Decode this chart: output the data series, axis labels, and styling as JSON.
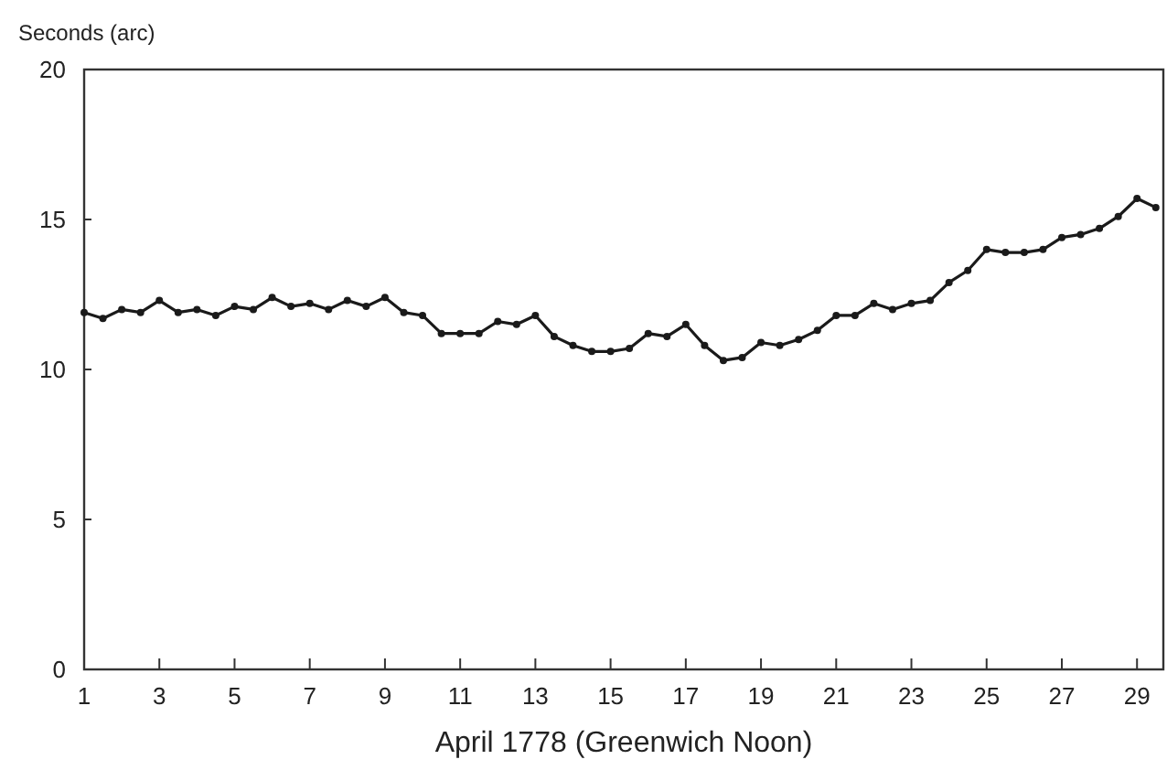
{
  "chart_data": {
    "type": "line",
    "xlabel": "April 1778 (Greenwich Noon)",
    "ylabel": "Seconds (arc)",
    "x": [
      1,
      1.5,
      2,
      2.5,
      3,
      3.5,
      4,
      4.5,
      5,
      5.5,
      6,
      6.5,
      7,
      7.5,
      8,
      8.5,
      9,
      9.5,
      10,
      10.5,
      11,
      11.5,
      12,
      12.5,
      13,
      13.5,
      14,
      14.5,
      15,
      15.5,
      16,
      16.5,
      17,
      17.5,
      18,
      18.5,
      19,
      19.5,
      20,
      20.5,
      21,
      21.5,
      22,
      22.5,
      23,
      23.5,
      24,
      24.5,
      25,
      25.5,
      26,
      26.5,
      27,
      27.5,
      28,
      28.5,
      29,
      29.5
    ],
    "series": [
      {
        "color": "#1a1a1a",
        "values": [
          11.9,
          11.7,
          12.0,
          11.9,
          12.3,
          11.9,
          12.0,
          11.8,
          12.1,
          12.0,
          12.4,
          12.1,
          12.2,
          12.0,
          12.3,
          12.1,
          12.4,
          11.9,
          11.8,
          11.2,
          11.2,
          11.2,
          11.6,
          11.5,
          11.8,
          11.1,
          10.8,
          10.6,
          10.6,
          10.7,
          11.2,
          11.1,
          11.5,
          10.8,
          10.3,
          10.4,
          10.9,
          10.8,
          11.0,
          11.3,
          11.8,
          11.8,
          12.2,
          12.0,
          12.2,
          12.3,
          12.9,
          13.3,
          14.0,
          13.9,
          13.9,
          14.0,
          14.4,
          14.5,
          14.7,
          15.1,
          15.7,
          15.4
        ]
      }
    ],
    "xlim": [
      1,
      29.7
    ],
    "xticks": [
      1,
      3,
      5,
      7,
      9,
      11,
      13,
      15,
      17,
      19,
      21,
      23,
      25,
      27,
      29
    ],
    "ylim": [
      0,
      20
    ],
    "yticks": [
      0,
      5,
      10,
      15,
      20
    ],
    "marker": "circle",
    "line_style": "solid",
    "grid": false
  }
}
